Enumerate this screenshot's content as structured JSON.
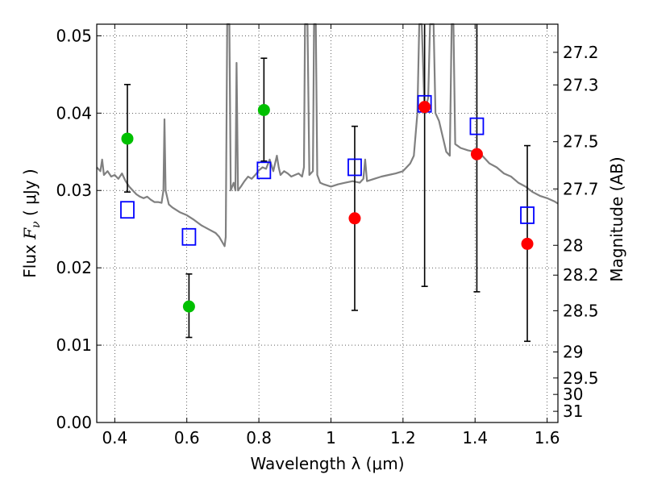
{
  "chart_data": {
    "type": "scatter",
    "xlabel": "Wavelength  λ (μm)",
    "ylabel_prefix": "Flux  ",
    "ylabel_symbol": "F",
    "ylabel_subscript": "ν",
    "ylabel_unit": "  ( μJy )",
    "ylabel_right": "Magnitude (AB)",
    "xlim": [
      0.35,
      1.63
    ],
    "ylim": [
      0.0,
      0.0515
    ],
    "grid": true,
    "x_ticks": [
      {
        "v": 0.4,
        "label": "0.4"
      },
      {
        "v": 0.6,
        "label": "0.6"
      },
      {
        "v": 0.8,
        "label": "0.8"
      },
      {
        "v": 1.0,
        "label": "1"
      },
      {
        "v": 1.2,
        "label": "1.2"
      },
      {
        "v": 1.4,
        "label": "1.4"
      },
      {
        "v": 1.6,
        "label": "1.6"
      }
    ],
    "y_ticks": [
      {
        "v": 0.0,
        "label": "0.00"
      },
      {
        "v": 0.01,
        "label": "0.01"
      },
      {
        "v": 0.02,
        "label": "0.02"
      },
      {
        "v": 0.03,
        "label": "0.03"
      },
      {
        "v": 0.04,
        "label": "0.04"
      },
      {
        "v": 0.05,
        "label": "0.05"
      }
    ],
    "right_ticks": [
      {
        "v": 27.2,
        "label": "27.2"
      },
      {
        "v": 27.3,
        "label": "27.3"
      },
      {
        "v": 27.5,
        "label": "27.5"
      },
      {
        "v": 27.7,
        "label": "27.7"
      },
      {
        "v": 28.0,
        "label": "28"
      },
      {
        "v": 28.2,
        "label": "28.2"
      },
      {
        "v": 28.5,
        "label": "28.5"
      },
      {
        "v": 29.0,
        "label": "29"
      },
      {
        "v": 29.5,
        "label": "29.5"
      },
      {
        "v": 30.0,
        "label": "30"
      },
      {
        "v": 31.0,
        "label": "31"
      }
    ],
    "green_points": [
      {
        "x": 0.435,
        "y": 0.0367,
        "lo": 0.0298,
        "hi": 0.0437
      },
      {
        "x": 0.606,
        "y": 0.015,
        "lo": 0.011,
        "hi": 0.0192
      },
      {
        "x": 0.814,
        "y": 0.0404,
        "lo": 0.0338,
        "hi": 0.0471
      }
    ],
    "red_points": [
      {
        "x": 1.066,
        "y": 0.0264,
        "lo": 0.0145,
        "hi": 0.0383
      },
      {
        "x": 1.26,
        "y": 0.0408,
        "lo": 0.0176,
        "hi": 0.0515
      },
      {
        "x": 1.405,
        "y": 0.0347,
        "lo": 0.0169,
        "hi": 0.0515
      },
      {
        "x": 1.545,
        "y": 0.0231,
        "lo": 0.0105,
        "hi": 0.0358
      }
    ],
    "model_points": [
      {
        "x": 0.435,
        "y": 0.0275
      },
      {
        "x": 0.606,
        "y": 0.024
      },
      {
        "x": 0.814,
        "y": 0.0326
      },
      {
        "x": 1.066,
        "y": 0.033
      },
      {
        "x": 1.26,
        "y": 0.0412
      },
      {
        "x": 1.405,
        "y": 0.0383
      },
      {
        "x": 1.545,
        "y": 0.0268
      }
    ],
    "spectrum": [
      [
        0.35,
        0.033
      ],
      [
        0.36,
        0.0325
      ],
      [
        0.365,
        0.034
      ],
      [
        0.37,
        0.032
      ],
      [
        0.38,
        0.0325
      ],
      [
        0.39,
        0.0318
      ],
      [
        0.4,
        0.032
      ],
      [
        0.41,
        0.0315
      ],
      [
        0.42,
        0.0322
      ],
      [
        0.43,
        0.0312
      ],
      [
        0.44,
        0.0305
      ],
      [
        0.45,
        0.03
      ],
      [
        0.46,
        0.0295
      ],
      [
        0.47,
        0.0292
      ],
      [
        0.48,
        0.029
      ],
      [
        0.49,
        0.0292
      ],
      [
        0.5,
        0.0288
      ],
      [
        0.51,
        0.0285
      ],
      [
        0.52,
        0.0285
      ],
      [
        0.53,
        0.0284
      ],
      [
        0.535,
        0.03
      ],
      [
        0.538,
        0.0392
      ],
      [
        0.541,
        0.03
      ],
      [
        0.55,
        0.0282
      ],
      [
        0.56,
        0.0278
      ],
      [
        0.58,
        0.0272
      ],
      [
        0.6,
        0.0268
      ],
      [
        0.62,
        0.0262
      ],
      [
        0.64,
        0.0255
      ],
      [
        0.66,
        0.025
      ],
      [
        0.68,
        0.0245
      ],
      [
        0.69,
        0.024
      ],
      [
        0.7,
        0.0232
      ],
      [
        0.705,
        0.0228
      ],
      [
        0.708,
        0.024
      ],
      [
        0.712,
        0.0515
      ],
      [
        0.718,
        0.0515
      ],
      [
        0.722,
        0.03
      ],
      [
        0.73,
        0.031
      ],
      [
        0.735,
        0.03
      ],
      [
        0.738,
        0.0465
      ],
      [
        0.742,
        0.03
      ],
      [
        0.75,
        0.0305
      ],
      [
        0.76,
        0.0312
      ],
      [
        0.77,
        0.0318
      ],
      [
        0.78,
        0.0315
      ],
      [
        0.79,
        0.032
      ],
      [
        0.8,
        0.0326
      ],
      [
        0.81,
        0.033
      ],
      [
        0.82,
        0.0328
      ],
      [
        0.83,
        0.034
      ],
      [
        0.84,
        0.0325
      ],
      [
        0.85,
        0.0345
      ],
      [
        0.855,
        0.033
      ],
      [
        0.86,
        0.032
      ],
      [
        0.87,
        0.0325
      ],
      [
        0.88,
        0.0322
      ],
      [
        0.89,
        0.0318
      ],
      [
        0.9,
        0.032
      ],
      [
        0.91,
        0.0322
      ],
      [
        0.92,
        0.0318
      ],
      [
        0.925,
        0.033
      ],
      [
        0.928,
        0.0515
      ],
      [
        0.935,
        0.0515
      ],
      [
        0.94,
        0.032
      ],
      [
        0.95,
        0.0325
      ],
      [
        0.953,
        0.0515
      ],
      [
        0.958,
        0.0515
      ],
      [
        0.962,
        0.032
      ],
      [
        0.97,
        0.031
      ],
      [
        0.98,
        0.0308
      ],
      [
        1.0,
        0.0305
      ],
      [
        1.02,
        0.0308
      ],
      [
        1.04,
        0.031
      ],
      [
        1.06,
        0.0312
      ],
      [
        1.08,
        0.031
      ],
      [
        1.09,
        0.0315
      ],
      [
        1.095,
        0.034
      ],
      [
        1.1,
        0.0312
      ],
      [
        1.12,
        0.0315
      ],
      [
        1.14,
        0.0318
      ],
      [
        1.16,
        0.032
      ],
      [
        1.18,
        0.0322
      ],
      [
        1.2,
        0.0325
      ],
      [
        1.21,
        0.033
      ],
      [
        1.22,
        0.0335
      ],
      [
        1.23,
        0.0345
      ],
      [
        1.24,
        0.04
      ],
      [
        1.245,
        0.0515
      ],
      [
        1.252,
        0.0515
      ],
      [
        1.26,
        0.04
      ],
      [
        1.27,
        0.042
      ],
      [
        1.275,
        0.0515
      ],
      [
        1.285,
        0.0515
      ],
      [
        1.29,
        0.04
      ],
      [
        1.3,
        0.039
      ],
      [
        1.31,
        0.037
      ],
      [
        1.32,
        0.035
      ],
      [
        1.33,
        0.0345
      ],
      [
        1.335,
        0.0515
      ],
      [
        1.34,
        0.0515
      ],
      [
        1.345,
        0.036
      ],
      [
        1.36,
        0.0355
      ],
      [
        1.38,
        0.0352
      ],
      [
        1.4,
        0.035
      ],
      [
        1.42,
        0.0345
      ],
      [
        1.44,
        0.0335
      ],
      [
        1.46,
        0.033
      ],
      [
        1.48,
        0.0322
      ],
      [
        1.5,
        0.0318
      ],
      [
        1.52,
        0.031
      ],
      [
        1.54,
        0.0305
      ],
      [
        1.56,
        0.0298
      ],
      [
        1.58,
        0.0293
      ],
      [
        1.6,
        0.029
      ],
      [
        1.62,
        0.0286
      ],
      [
        1.63,
        0.0283
      ]
    ],
    "colors": {
      "green": "#00c000",
      "red": "#ff0000",
      "model": "#0000ff",
      "spectrum": "#808080",
      "errorbar": "#000000"
    }
  }
}
